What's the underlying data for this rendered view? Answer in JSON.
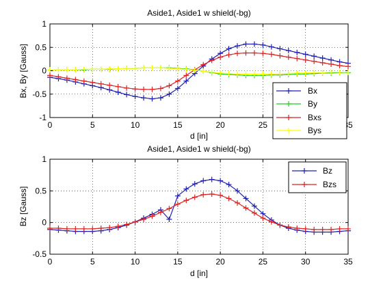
{
  "chart_data": [
    {
      "type": "line",
      "title": "Aside1, Aside1 w shield(-bg)",
      "xlabel": "d [in]",
      "ylabel": "Bx, By [Gauss]",
      "xlim": [
        0,
        35
      ],
      "ylim": [
        -1,
        1
      ],
      "xticks": [
        "0",
        "5",
        "10",
        "15",
        "20",
        "25",
        "30",
        "35"
      ],
      "yticks": [
        "-1",
        "-0.5",
        "0",
        "0.5",
        "1"
      ],
      "grid": true,
      "legend_position": "bottom-right",
      "series": [
        {
          "name": "Bx",
          "color": "#1f1fb4",
          "marker": "plus",
          "x": [
            0,
            1,
            2,
            3,
            4,
            5,
            6,
            7,
            8,
            9,
            10,
            11,
            12,
            13,
            14,
            15,
            16,
            17,
            18,
            19,
            20,
            21,
            22,
            23,
            24,
            25,
            26,
            27,
            28,
            29,
            30,
            31,
            32,
            33,
            34,
            35
          ],
          "values": [
            -0.14,
            -0.17,
            -0.2,
            -0.24,
            -0.28,
            -0.32,
            -0.36,
            -0.41,
            -0.46,
            -0.51,
            -0.55,
            -0.58,
            -0.6,
            -0.58,
            -0.5,
            -0.38,
            -0.22,
            -0.06,
            0.1,
            0.25,
            0.37,
            0.47,
            0.53,
            0.57,
            0.57,
            0.55,
            0.51,
            0.47,
            0.43,
            0.39,
            0.35,
            0.31,
            0.27,
            0.23,
            0.19,
            0.16
          ]
        },
        {
          "name": "By",
          "color": "#22cc22",
          "marker": "plus",
          "x": [
            0,
            1,
            2,
            3,
            4,
            5,
            6,
            7,
            8,
            9,
            10,
            11,
            12,
            13,
            14,
            15,
            16,
            17,
            18,
            19,
            20,
            21,
            22,
            23,
            24,
            25,
            26,
            27,
            28,
            29,
            30,
            31,
            32,
            33,
            34,
            35
          ],
          "values": [
            0.02,
            0.02,
            0.02,
            0.02,
            0.02,
            0.03,
            0.03,
            0.03,
            0.04,
            0.05,
            0.05,
            0.06,
            0.06,
            0.06,
            0.06,
            0.05,
            0.04,
            0.02,
            -0.01,
            -0.04,
            -0.07,
            -0.08,
            -0.09,
            -0.1,
            -0.1,
            -0.1,
            -0.09,
            -0.09,
            -0.08,
            -0.07,
            -0.07,
            -0.06,
            -0.05,
            -0.05,
            -0.04,
            -0.04
          ]
        },
        {
          "name": "Bxs",
          "color": "#dd2222",
          "marker": "plus",
          "x": [
            0,
            1,
            2,
            3,
            4,
            5,
            6,
            7,
            8,
            9,
            10,
            11,
            12,
            13,
            14,
            15,
            16,
            17,
            18,
            19,
            20,
            21,
            22,
            23,
            24,
            25,
            26,
            27,
            28,
            29,
            30,
            31,
            32,
            33,
            34,
            35
          ],
          "values": [
            -0.1,
            -0.13,
            -0.16,
            -0.19,
            -0.22,
            -0.25,
            -0.28,
            -0.31,
            -0.34,
            -0.37,
            -0.39,
            -0.4,
            -0.4,
            -0.38,
            -0.32,
            -0.22,
            -0.1,
            0.02,
            0.13,
            0.22,
            0.29,
            0.34,
            0.37,
            0.38,
            0.38,
            0.37,
            0.35,
            0.32,
            0.29,
            0.26,
            0.23,
            0.2,
            0.17,
            0.14,
            0.11,
            0.09
          ]
        },
        {
          "name": "Bys",
          "color": "#ffff00",
          "marker": "plus",
          "x": [
            0,
            1,
            2,
            3,
            4,
            5,
            6,
            7,
            8,
            9,
            10,
            11,
            12,
            13,
            14,
            15,
            16,
            17,
            18,
            19,
            20,
            21,
            22,
            23,
            24,
            25,
            26,
            27,
            28,
            29,
            30,
            31,
            32,
            33,
            34,
            35
          ],
          "values": [
            0.02,
            0.02,
            0.02,
            0.02,
            0.03,
            0.03,
            0.03,
            0.04,
            0.04,
            0.05,
            0.05,
            0.06,
            0.06,
            0.06,
            0.05,
            0.04,
            0.03,
            0.01,
            -0.01,
            -0.03,
            -0.05,
            -0.06,
            -0.07,
            -0.07,
            -0.07,
            -0.07,
            -0.07,
            -0.06,
            -0.06,
            -0.05,
            -0.05,
            -0.04,
            -0.04,
            -0.03,
            -0.03,
            -0.03
          ]
        }
      ]
    },
    {
      "type": "line",
      "title": "Aside1, Aside1 w shield(-bg)",
      "xlabel": "d [in]",
      "ylabel": "Bz [Gauss]",
      "xlim": [
        0,
        35
      ],
      "ylim": [
        -0.5,
        1
      ],
      "xticks": [
        "0",
        "5",
        "10",
        "15",
        "20",
        "25",
        "30",
        "35"
      ],
      "yticks": [
        "-0.5",
        "0",
        "0.5",
        "1"
      ],
      "grid": true,
      "legend_position": "top-right",
      "series": [
        {
          "name": "Bz",
          "color": "#1f1fb4",
          "marker": "plus",
          "x": [
            0,
            1,
            2,
            3,
            4,
            5,
            6,
            7,
            8,
            9,
            10,
            11,
            12,
            13,
            14,
            15,
            16,
            17,
            18,
            19,
            20,
            21,
            22,
            23,
            24,
            25,
            26,
            27,
            28,
            29,
            30,
            31,
            32,
            33,
            34,
            35
          ],
          "values": [
            -0.11,
            -0.12,
            -0.13,
            -0.14,
            -0.14,
            -0.14,
            -0.13,
            -0.11,
            -0.08,
            -0.04,
            0.01,
            0.07,
            0.13,
            0.2,
            0.05,
            0.42,
            0.53,
            0.61,
            0.66,
            0.68,
            0.66,
            0.6,
            0.5,
            0.38,
            0.26,
            0.14,
            0.04,
            -0.04,
            -0.09,
            -0.12,
            -0.14,
            -0.15,
            -0.15,
            -0.15,
            -0.14,
            -0.13
          ]
        },
        {
          "name": "Bzs",
          "color": "#dd2222",
          "marker": "plus",
          "x": [
            0,
            1,
            2,
            3,
            4,
            5,
            6,
            7,
            8,
            9,
            10,
            11,
            12,
            13,
            14,
            15,
            16,
            17,
            18,
            19,
            20,
            21,
            22,
            23,
            24,
            25,
            26,
            27,
            28,
            29,
            30,
            31,
            32,
            33,
            34,
            35
          ],
          "values": [
            -0.09,
            -0.09,
            -0.1,
            -0.1,
            -0.1,
            -0.1,
            -0.09,
            -0.08,
            -0.06,
            -0.03,
            0.01,
            0.05,
            0.1,
            0.16,
            0.22,
            0.29,
            0.35,
            0.4,
            0.44,
            0.45,
            0.43,
            0.38,
            0.31,
            0.23,
            0.15,
            0.07,
            0.01,
            -0.04,
            -0.07,
            -0.09,
            -0.1,
            -0.11,
            -0.11,
            -0.11,
            -0.1,
            -0.1
          ]
        }
      ]
    }
  ]
}
